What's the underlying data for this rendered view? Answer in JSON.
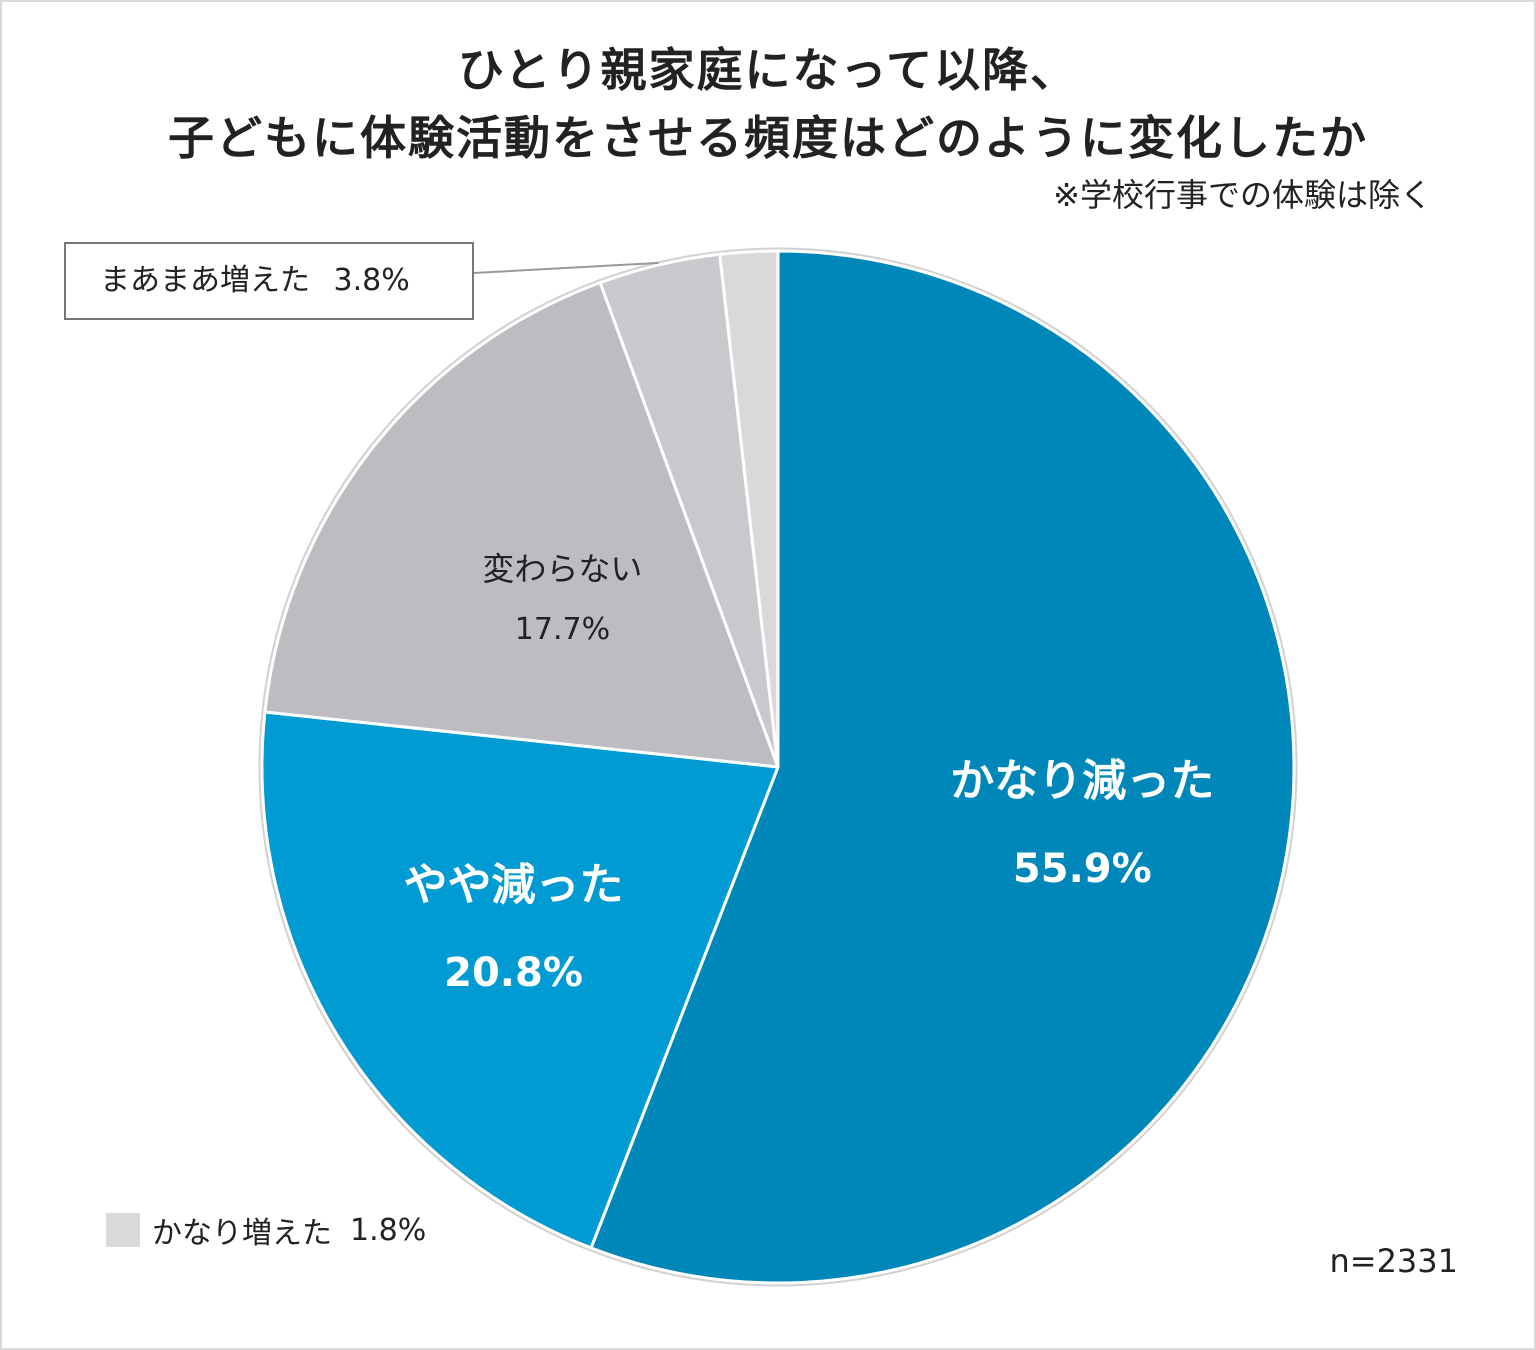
{
  "header": {
    "title_line1": "ひとり親家庭になって以降、",
    "title_line2": "子どもに体験活動をさせる頻度はどのように変化したか",
    "note": "※学校行事での体験は除く"
  },
  "sample": "n=2331",
  "chart_data": {
    "type": "pie",
    "title": "ひとり親家庭になって以降、子どもに体験活動をさせる頻度はどのように変化したか",
    "subtitle": "※学校行事での体験は除く",
    "start_angle": "top",
    "direction": "clockwise",
    "slices": [
      {
        "label": "かなり減った",
        "value": 55.9,
        "value_label": "55.9%",
        "color": "#0087b9",
        "label_color": "#ffffff",
        "label_style": "inside-bold"
      },
      {
        "label": "やや減った",
        "value": 20.8,
        "value_label": "20.8%",
        "color": "#009bd3",
        "label_color": "#ffffff",
        "label_style": "inside-bold"
      },
      {
        "label": "変わらない",
        "value": 17.7,
        "value_label": "17.7%",
        "color": "#bdbcc1",
        "label_color": "#222222",
        "label_style": "inside"
      },
      {
        "label": "まあまあ増えた",
        "value": 3.8,
        "value_label": "3.8%",
        "color": "#c9c8cc",
        "label_color": "#222222",
        "label_style": "callout-box"
      },
      {
        "label": "かなり増えた",
        "value": 1.8,
        "value_label": "1.8%",
        "color": "#d9d9da",
        "label_color": "#222222",
        "label_style": "legend"
      }
    ]
  }
}
